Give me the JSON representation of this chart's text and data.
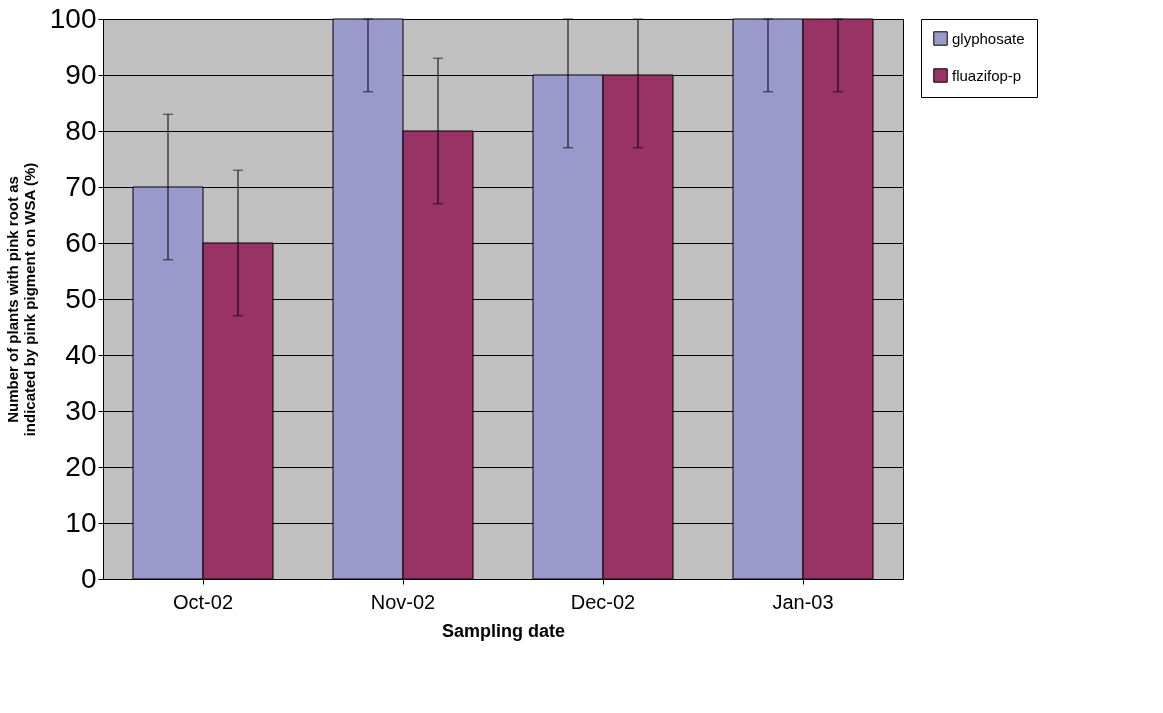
{
  "chart_data": {
    "type": "bar",
    "xlabel": "Sampling date",
    "ylabel": "Number of plants with pink root as indicated by pink pigment on WSA (%)",
    "categories": [
      "Oct-02",
      "Nov-02",
      "Dec-02",
      "Jan-03"
    ],
    "series": [
      {
        "name": "glyphosate",
        "color": "#9999cc",
        "values": [
          70,
          100,
          90,
          100
        ],
        "errors": [
          13,
          [
            87,
            100
          ],
          [
            77,
            100
          ],
          [
            87,
            100
          ]
        ]
      },
      {
        "name": "fluazifop-p",
        "color": "#993366",
        "values": [
          60,
          80,
          90,
          100
        ],
        "errors": [
          13,
          13,
          [
            77,
            100
          ],
          [
            87,
            100
          ]
        ]
      }
    ],
    "ylim": [
      0,
      100
    ],
    "yticks": [
      0,
      10,
      20,
      30,
      40,
      50,
      60,
      70,
      80,
      90,
      100
    ],
    "grid": "y",
    "legend": "right"
  }
}
